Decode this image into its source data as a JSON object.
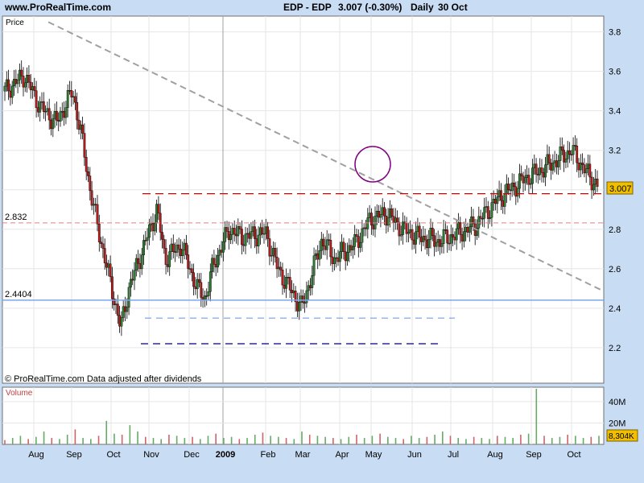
{
  "header": {
    "site": "www.ProRealTime.com",
    "symbol": "EDP - EDP",
    "quote": "3.007 (-0.30%)",
    "period": "Daily",
    "date": "30 Oct"
  },
  "price_panel": {
    "label": "Price",
    "footer": "© ProRealTime.com  Data adjusted after dividends",
    "last_value_label": "3.007",
    "level_labels": [
      "2.832",
      "2.4404"
    ]
  },
  "volume_panel": {
    "label": "Volume",
    "last_value_label": "8,304K",
    "yticks": [
      "40M",
      "20M"
    ]
  },
  "colors": {
    "background": "#c8dcf4",
    "panel": "#ffffff",
    "up_candle": "#2e7d32",
    "down_candle": "#b71c1c",
    "trendline": "#a0a0a0",
    "resistance": "#cc0000",
    "support": "#7aa6f0",
    "lower_support": "#000080",
    "circle": "#800080"
  },
  "chart_data": [
    {
      "type": "line",
      "title": "EDP - EDP 3.007 (-0.30%) Daily 30 Oct",
      "ylabel": "Price",
      "ylim": [
        2.02,
        3.88
      ],
      "yticks": [
        2.2,
        2.4,
        2.6,
        2.8,
        3.0,
        3.2,
        3.4,
        3.6,
        3.8
      ],
      "xticks": [
        "Aug",
        "Sep",
        "Oct",
        "Nov",
        "Dec",
        "2009",
        "Feb",
        "Mar",
        "Apr",
        "May",
        "Jun",
        "Jul",
        "Aug",
        "Sep",
        "Oct"
      ],
      "grid": true,
      "series": [
        {
          "x": [
            "Jul",
            "Aug",
            "Aug",
            "Sep",
            "Sep",
            "Sep",
            "Oct",
            "Oct",
            "Oct",
            "Oct",
            "Nov",
            "Nov",
            "Nov",
            "Dec",
            "Dec",
            "Dec",
            "2009",
            "Jan",
            "Feb",
            "Feb",
            "Mar",
            "Mar",
            "Mar",
            "Apr",
            "Apr",
            "May",
            "May",
            "Jun",
            "Jun",
            "Jul",
            "Jul",
            "Aug",
            "Aug",
            "Sep",
            "Sep",
            "Oct",
            "Oct",
            "Oct"
          ],
          "y": [
            3.5,
            3.58,
            3.42,
            3.34,
            3.5,
            3.3,
            3.0,
            2.8,
            2.3,
            2.5,
            2.9,
            2.65,
            2.72,
            2.5,
            2.45,
            2.62,
            2.8,
            2.76,
            2.78,
            2.6,
            2.5,
            2.4,
            2.75,
            2.65,
            2.72,
            2.85,
            2.88,
            2.8,
            2.76,
            2.74,
            2.78,
            2.82,
            2.96,
            3.05,
            3.12,
            3.2,
            3.08,
            3.01
          ]
        }
      ],
      "annotations": {
        "resistance_level": 2.98,
        "level_2832": 2.832,
        "level_24404": 2.4404,
        "support_level_1": 2.35,
        "support_level_2": 2.22,
        "last_price": 3.007
      }
    },
    {
      "type": "bar",
      "title": "Volume",
      "ylim": [
        0,
        52000000
      ],
      "yticks": [
        "40M",
        "20M"
      ],
      "values": [
        4,
        6,
        8,
        5,
        7,
        12,
        6,
        5,
        9,
        14,
        6,
        5,
        8,
        22,
        10,
        9,
        18,
        12,
        7,
        6,
        5,
        9,
        8,
        6,
        7,
        5,
        8,
        10,
        6,
        7,
        5,
        6,
        9,
        11,
        8,
        7,
        6,
        5,
        12,
        9,
        8,
        7,
        6,
        5,
        7,
        9,
        6,
        8,
        10,
        7,
        6,
        5,
        8,
        6,
        7,
        9,
        12,
        8,
        6,
        5,
        7,
        6,
        5,
        8,
        7,
        6,
        9,
        10,
        52,
        8,
        6,
        7,
        9,
        8,
        6,
        7,
        8
      ]
    }
  ]
}
